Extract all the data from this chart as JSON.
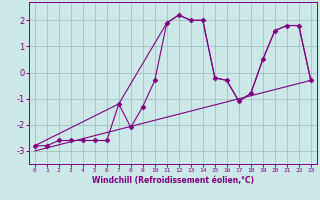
{
  "xlabel": "Windchill (Refroidissement éolien,°C)",
  "background_color": "#cce8e8",
  "line_color": "#800080",
  "grid_color": "#99bbbb",
  "axis_color": "#800080",
  "tick_color": "#800080",
  "xlim": [
    -0.5,
    23.5
  ],
  "ylim": [
    -3.5,
    2.7
  ],
  "yticks": [
    -3,
    -2,
    -1,
    0,
    1,
    2
  ],
  "xticks": [
    0,
    1,
    2,
    3,
    4,
    5,
    6,
    7,
    8,
    9,
    10,
    11,
    12,
    13,
    14,
    15,
    16,
    17,
    18,
    19,
    20,
    21,
    22,
    23
  ],
  "series1_x": [
    0,
    1,
    2,
    3,
    4,
    5,
    6,
    7,
    8,
    9,
    10,
    11,
    12,
    13,
    14,
    15,
    16,
    17,
    18,
    19,
    20,
    21,
    22,
    23
  ],
  "series1_y": [
    -2.8,
    -2.8,
    -2.6,
    -2.6,
    -2.6,
    -2.6,
    -2.6,
    -1.2,
    -2.1,
    -1.3,
    -0.3,
    1.9,
    2.2,
    2.0,
    2.0,
    -0.2,
    -0.3,
    -1.1,
    -0.8,
    0.5,
    1.6,
    1.8,
    1.8,
    -0.3
  ],
  "series2_x": [
    0,
    23
  ],
  "series2_y": [
    -3.0,
    -0.3
  ],
  "series3_x": [
    0,
    7,
    11,
    12,
    13,
    14,
    15,
    16,
    17,
    18,
    19,
    20,
    21,
    22,
    23
  ],
  "series3_y": [
    -2.8,
    -1.2,
    1.9,
    2.2,
    2.0,
    2.0,
    -0.2,
    -0.3,
    -1.1,
    -0.8,
    0.5,
    1.6,
    1.8,
    1.8,
    -0.3
  ],
  "marker": "D",
  "markersize": 2.5,
  "linewidth": 0.8,
  "xtick_fontsize": 4.5,
  "ytick_fontsize": 6.0,
  "xlabel_fontsize": 5.5
}
